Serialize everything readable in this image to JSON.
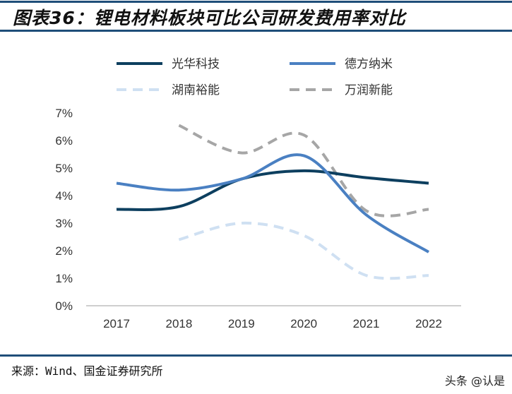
{
  "title": "图表36：锂电材料板块可比公司研发费用率对比",
  "source": "来源：Wind、国金证券研究所",
  "watermark": "头条 @认是",
  "chart_data": {
    "type": "line",
    "title": "",
    "xlabel": "",
    "ylabel": "",
    "categories": [
      "2017",
      "2018",
      "2019",
      "2020",
      "2021",
      "2022"
    ],
    "ylim": [
      0,
      7
    ],
    "yticks": [
      "0%",
      "1%",
      "2%",
      "3%",
      "4%",
      "5%",
      "6%",
      "7%"
    ],
    "grid": false,
    "legend_position": "top",
    "series": [
      {
        "name": "光华科技",
        "color": "#0d3f5f",
        "dash": "solid",
        "values": [
          3.5,
          3.6,
          4.6,
          4.9,
          4.65,
          4.45
        ]
      },
      {
        "name": "德方纳米",
        "color": "#4a80c2",
        "dash": "solid",
        "values": [
          4.45,
          4.2,
          4.6,
          5.45,
          3.3,
          1.95
        ]
      },
      {
        "name": "湖南裕能",
        "color": "#cfe0f2",
        "dash": "dashed",
        "values": [
          null,
          2.4,
          3.0,
          2.55,
          1.1,
          1.1
        ]
      },
      {
        "name": "万润新能",
        "color": "#a6a6a6",
        "dash": "dashed",
        "values": [
          null,
          6.55,
          5.55,
          6.2,
          3.45,
          3.5
        ]
      }
    ]
  }
}
